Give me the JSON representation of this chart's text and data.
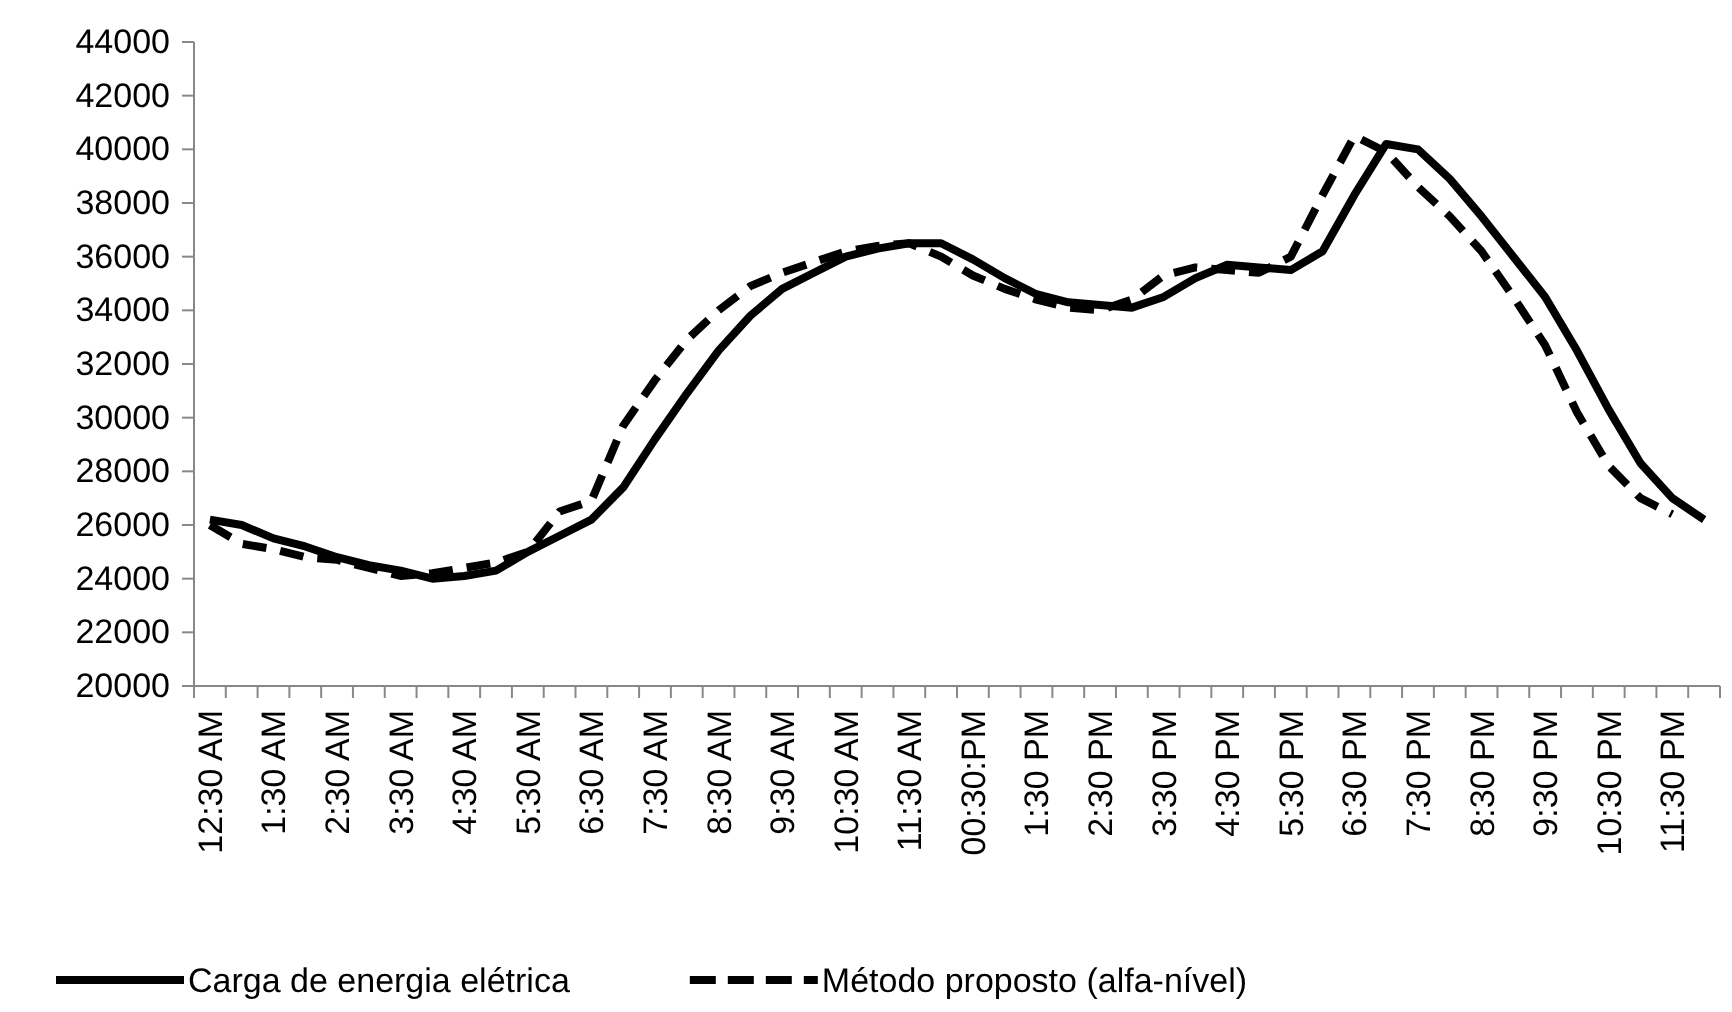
{
  "chart_data": {
    "type": "line",
    "categories": [
      "12:30 AM",
      null,
      "1:30 AM",
      null,
      "2:30 AM",
      null,
      "3:30 AM",
      null,
      "4:30 AM",
      null,
      "5:30 AM",
      null,
      "6:30 AM",
      null,
      "7:30 AM",
      null,
      "8:30 AM",
      null,
      "9:30 AM",
      null,
      "10:30 AM",
      null,
      "11:30 AM",
      null,
      "00:30:PM",
      null,
      "1:30 PM",
      null,
      "2:30 PM",
      null,
      "3:30 PM",
      null,
      "4:30 PM",
      null,
      "5:30 PM",
      null,
      "6:30 PM",
      null,
      "7:30 PM",
      null,
      "8:30 PM",
      null,
      "9:30 PM",
      null,
      "10:30 PM",
      null,
      "11:30 PM",
      null
    ],
    "series": [
      {
        "name": "Carga de energia elétrica",
        "color": "#000000",
        "line_style": "solid",
        "values": [
          26200,
          26000,
          25500,
          25200,
          24800,
          24500,
          24300,
          24000,
          24100,
          24300,
          25000,
          25600,
          26200,
          27400,
          29200,
          30900,
          32500,
          33800,
          34800,
          35400,
          36000,
          36300,
          36500,
          36500,
          35900,
          35200,
          34600,
          34300,
          34200,
          34100,
          34500,
          35200,
          35700,
          35600,
          35500,
          36200,
          38300,
          40200,
          40000,
          38900,
          37500,
          36000,
          34500,
          32500,
          30300,
          28300,
          27000,
          26200
        ]
      },
      {
        "name": "Método proposto (alfa-nível)",
        "color": "#000000",
        "line_style": "dashed",
        "values": [
          26000,
          25300,
          25100,
          24800,
          24700,
          24400,
          24100,
          24200,
          24400,
          24600,
          25000,
          26500,
          26900,
          29700,
          31400,
          32900,
          34000,
          34900,
          35400,
          35800,
          36200,
          36400,
          36500,
          36000,
          35300,
          34800,
          34400,
          34100,
          34000,
          34400,
          35300,
          35600,
          35500,
          35400,
          36000,
          38300,
          40500,
          39900,
          38600,
          37500,
          36200,
          34500,
          32700,
          30200,
          28200,
          27000,
          26400,
          null
        ]
      }
    ],
    "ylim": [
      20000,
      44000
    ],
    "yticks": [
      20000,
      22000,
      24000,
      26000,
      28000,
      30000,
      32000,
      34000,
      36000,
      38000,
      40000,
      42000,
      44000
    ],
    "grid": false,
    "legend": "bottom"
  }
}
